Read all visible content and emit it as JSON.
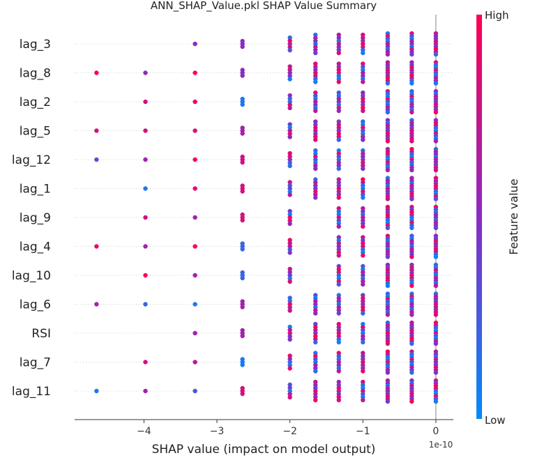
{
  "chart_data": {
    "type": "scatter",
    "title": "ANN_SHAP_Value.pkl SHAP Value Summary",
    "xlabel": "SHAP value (impact on model output)",
    "x_offset_label": "1e-10",
    "x_ticks": [
      -4,
      -3,
      -2,
      -1,
      0
    ],
    "xlim": [
      -4.95,
      0.24
    ],
    "colorbar": {
      "title": "Feature value",
      "high_label": "High",
      "low_label": "Low",
      "low_color": "#008bfb",
      "high_color": "#ff0052"
    },
    "features": [
      {
        "name": "lag_3",
        "points": [
          [
            -3.3,
            0.5
          ],
          [
            -2.65,
            0.5
          ],
          [
            -2.0,
            0.5
          ],
          [
            -1.65,
            0.5
          ],
          [
            -1.33,
            0.5
          ],
          [
            -1.0,
            0.5
          ],
          [
            -0.66,
            0.5
          ],
          [
            -0.33,
            0.5
          ],
          [
            0,
            0.5
          ]
        ]
      },
      {
        "name": "lag_8",
        "points": [
          [
            -4.65,
            1
          ],
          [
            -3.98,
            0.5
          ],
          [
            -3.3,
            1
          ],
          [
            -2.65,
            0.5
          ],
          [
            -2.0,
            0.5
          ],
          [
            -1.65,
            0.5
          ],
          [
            -1.33,
            0.5
          ],
          [
            -1.0,
            0.5
          ],
          [
            -0.66,
            0.5
          ],
          [
            -0.33,
            0.5
          ],
          [
            0,
            0.5
          ]
        ]
      },
      {
        "name": "lag_2",
        "points": [
          [
            -3.98,
            0.8
          ],
          [
            -3.3,
            0.9
          ],
          [
            -2.65,
            0.1
          ],
          [
            -2.0,
            0.8
          ],
          [
            -1.65,
            0.6
          ],
          [
            -1.33,
            0.5
          ],
          [
            -1.0,
            0.5
          ],
          [
            -0.66,
            0.5
          ],
          [
            -0.33,
            0.5
          ],
          [
            0,
            0.5
          ]
        ]
      },
      {
        "name": "lag_5",
        "points": [
          [
            -4.65,
            0.8
          ],
          [
            -3.98,
            0.8
          ],
          [
            -3.3,
            0.8
          ],
          [
            -2.65,
            0.6
          ],
          [
            -2.0,
            0.5
          ],
          [
            -1.65,
            0.8
          ],
          [
            -1.33,
            0.5
          ],
          [
            -1.0,
            0.5
          ],
          [
            -0.66,
            0.5
          ],
          [
            -0.33,
            0.5
          ],
          [
            0,
            0.5
          ]
        ]
      },
      {
        "name": "lag_12",
        "points": [
          [
            -4.65,
            0.3
          ],
          [
            -3.98,
            0.6
          ],
          [
            -3.3,
            1
          ],
          [
            -2.65,
            0.8
          ],
          [
            -2.0,
            0.5
          ],
          [
            -1.65,
            0.5
          ],
          [
            -1.33,
            0.5
          ],
          [
            -1.0,
            0.5
          ],
          [
            -0.66,
            0.5
          ],
          [
            -0.33,
            0.5
          ],
          [
            0,
            0.5
          ]
        ]
      },
      {
        "name": "lag_1",
        "points": [
          [
            -3.98,
            0.1
          ],
          [
            -3.3,
            0.9
          ],
          [
            -2.65,
            0.8
          ],
          [
            -2.0,
            0.5
          ],
          [
            -1.65,
            0.3
          ],
          [
            -1.33,
            0.5
          ],
          [
            -1.0,
            0.5
          ],
          [
            -0.66,
            0.5
          ],
          [
            -0.33,
            0.5
          ],
          [
            0,
            0.5
          ]
        ]
      },
      {
        "name": "lag_9",
        "points": [
          [
            -3.98,
            0.8
          ],
          [
            -3.3,
            0.6
          ],
          [
            -2.65,
            0.8
          ],
          [
            -2.0,
            0.5
          ],
          [
            -1.33,
            0.5
          ],
          [
            -1.0,
            0.5
          ],
          [
            -0.66,
            0.5
          ],
          [
            -0.33,
            0.5
          ],
          [
            0,
            0.5
          ]
        ]
      },
      {
        "name": "lag_4",
        "points": [
          [
            -4.65,
            0.9
          ],
          [
            -3.98,
            0.6
          ],
          [
            -3.3,
            1
          ],
          [
            -2.65,
            0.2
          ],
          [
            -2.0,
            0.5
          ],
          [
            -1.33,
            0.5
          ],
          [
            -1.0,
            0.5
          ],
          [
            -0.66,
            0.5
          ],
          [
            -0.33,
            0.5
          ],
          [
            0,
            0.5
          ]
        ]
      },
      {
        "name": "lag_10",
        "points": [
          [
            -3.98,
            1
          ],
          [
            -3.3,
            0.6
          ],
          [
            -2.65,
            0.2
          ],
          [
            -2.0,
            0.5
          ],
          [
            -1.33,
            0.5
          ],
          [
            -1.0,
            0.5
          ],
          [
            -0.66,
            0.5
          ],
          [
            -0.33,
            0.5
          ],
          [
            0,
            0.5
          ]
        ]
      },
      {
        "name": "lag_6",
        "points": [
          [
            -4.65,
            0.6
          ],
          [
            -3.98,
            0.2
          ],
          [
            -3.3,
            0.1
          ],
          [
            -2.65,
            0.6
          ],
          [
            -2.0,
            0.5
          ],
          [
            -1.65,
            0.6
          ],
          [
            -1.33,
            0.5
          ],
          [
            -1.0,
            0.5
          ],
          [
            -0.66,
            0.5
          ],
          [
            -0.33,
            0.5
          ],
          [
            0,
            0.5
          ]
        ]
      },
      {
        "name": "RSI",
        "points": [
          [
            -3.3,
            0.6
          ],
          [
            -2.65,
            0.6
          ],
          [
            -2.0,
            0.5
          ],
          [
            -1.65,
            0.9
          ],
          [
            -1.33,
            0.5
          ],
          [
            -1.0,
            0.5
          ],
          [
            -0.66,
            0.5
          ],
          [
            -0.33,
            0.5
          ],
          [
            0,
            0.5
          ]
        ]
      },
      {
        "name": "lag_7",
        "points": [
          [
            -3.98,
            0.8
          ],
          [
            -3.3,
            0.7
          ],
          [
            -2.65,
            0.1
          ],
          [
            -2.0,
            0.5
          ],
          [
            -1.65,
            1
          ],
          [
            -1.33,
            0.5
          ],
          [
            -1.0,
            0.5
          ],
          [
            -0.66,
            0.5
          ],
          [
            -0.33,
            0.5
          ],
          [
            0,
            0.5
          ]
        ]
      },
      {
        "name": "lag_11",
        "points": [
          [
            -4.65,
            0.1
          ],
          [
            -3.98,
            0.6
          ],
          [
            -3.3,
            0.3
          ],
          [
            -2.65,
            0.8
          ],
          [
            -2.0,
            0.5
          ],
          [
            -1.65,
            0.1
          ],
          [
            -1.33,
            0.5
          ],
          [
            -1.0,
            0.5
          ],
          [
            -0.66,
            0.5
          ],
          [
            -0.33,
            0.5
          ],
          [
            0,
            0.5
          ]
        ]
      }
    ]
  }
}
